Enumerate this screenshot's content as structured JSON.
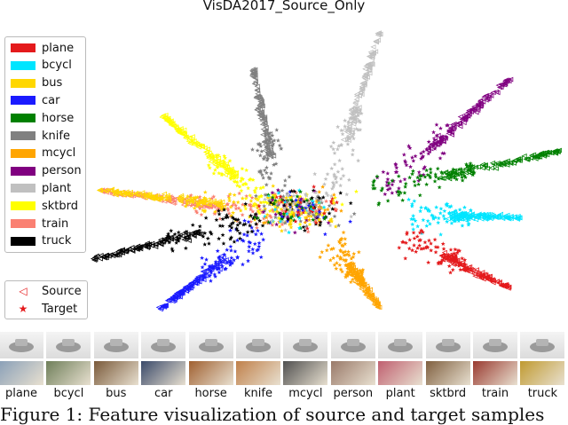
{
  "chart_data": {
    "type": "scatter",
    "title": "VisDA2017_Source_Only",
    "legend_position": "upper-left",
    "marker_legend_position": "lower-left",
    "grid": false,
    "axes_visible": false,
    "classes": [
      {
        "name": "plane",
        "color": "#e41a1c"
      },
      {
        "name": "bcycl",
        "color": "#00e5ff"
      },
      {
        "name": "bus",
        "color": "#ffd700"
      },
      {
        "name": "car",
        "color": "#1a1aff"
      },
      {
        "name": "horse",
        "color": "#008000"
      },
      {
        "name": "knife",
        "color": "#808080"
      },
      {
        "name": "mcycl",
        "color": "#ffa500"
      },
      {
        "name": "person",
        "color": "#800080"
      },
      {
        "name": "plant",
        "color": "#c0c0c0"
      },
      {
        "name": "sktbrd",
        "color": "#ffff00"
      },
      {
        "name": "train",
        "color": "#fa8072"
      },
      {
        "name": "truck",
        "color": "#000000"
      }
    ],
    "markers": [
      {
        "name": "Source",
        "symbol": "◁"
      },
      {
        "name": "Target",
        "symbol": "★"
      }
    ]
  },
  "thumbnail_labels": [
    "plane",
    "bcycl",
    "bus",
    "car",
    "horse",
    "knife",
    "mcycl",
    "person",
    "plant",
    "sktbrd",
    "train",
    "truck"
  ],
  "caption": "Figure 1:  Feature visualization of source and target samples"
}
